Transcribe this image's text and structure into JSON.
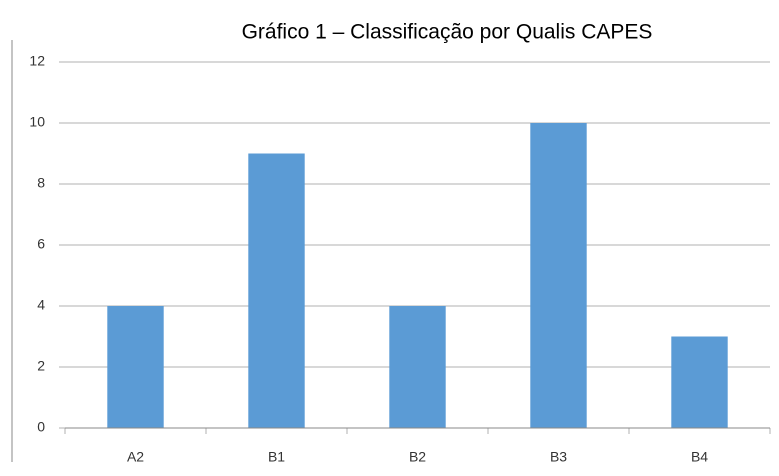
{
  "chart_data": {
    "type": "bar",
    "title": "Gráfico 1 – Classificação por Qualis CAPES",
    "categories": [
      "A2",
      "B1",
      "B2",
      "B3",
      "B4"
    ],
    "values": [
      4,
      9,
      4,
      10,
      3
    ],
    "color": "#5b9bd5",
    "ylim": [
      0,
      12
    ],
    "yticks": [
      0,
      2,
      4,
      6,
      8,
      10,
      12
    ],
    "grid": true
  }
}
